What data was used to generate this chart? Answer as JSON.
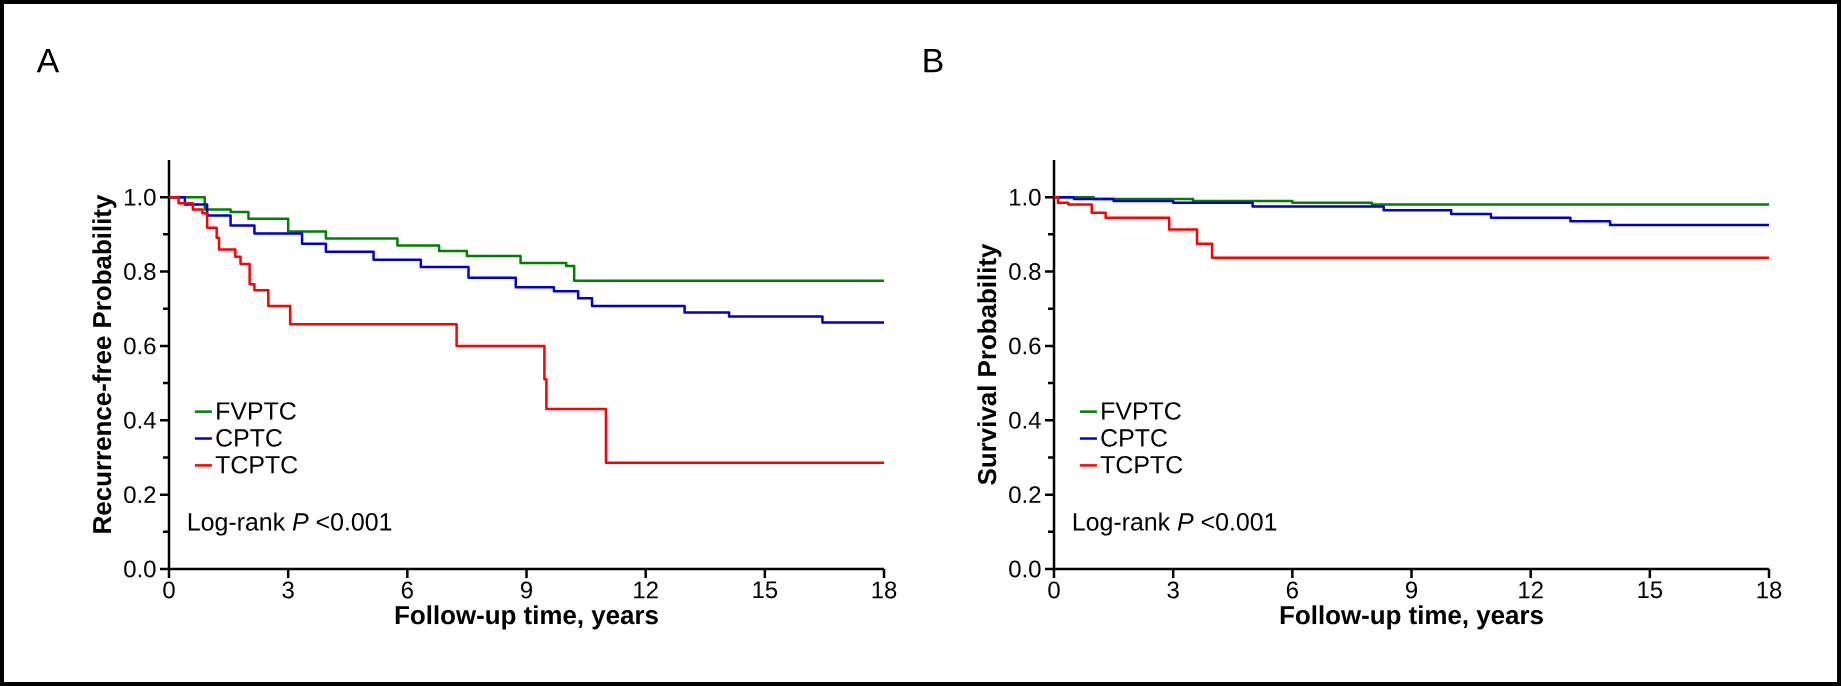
{
  "chart_data": [
    {
      "type": "step",
      "title": "A",
      "xlabel": "Follow-up time, years",
      "ylabel": "Recurrence-free Probability",
      "xlim": [
        0,
        18
      ],
      "ylim": [
        0,
        1.1
      ],
      "xticks": [
        0,
        3,
        6,
        9,
        12,
        15,
        18
      ],
      "yticks": [
        {
          "value": 0,
          "label": "0.0"
        },
        {
          "value": 0.2,
          "label": "0.2"
        },
        {
          "value": 0.4,
          "label": "0.4"
        },
        {
          "value": 0.6,
          "label": "0.6"
        },
        {
          "value": 0.8,
          "label": "0.8"
        },
        {
          "value": 1,
          "label": "1.0"
        }
      ],
      "legend": "bottom left",
      "marker": "none",
      "annotations": [
        "Log-rank *P* <0.001"
      ],
      "series": [
        {
          "name": "FVPTC",
          "color": "#008000",
          "x": [
            0,
            0.9,
            1.55,
            2.0,
            3.0,
            3.95,
            5.75,
            6.8,
            7.5,
            8.85,
            10.0,
            10.2,
            18
          ],
          "values": [
            1.0,
            0.967,
            0.96,
            0.942,
            0.908,
            0.889,
            0.87,
            0.855,
            0.842,
            0.823,
            0.815,
            0.775,
            0.775
          ]
        },
        {
          "name": "CPTC",
          "color": "#0000cc",
          "x": [
            0,
            0.4,
            0.96,
            1.55,
            2.15,
            3.35,
            3.95,
            5.15,
            6.34,
            7.54,
            8.73,
            9.69,
            10.3,
            10.65,
            12.98,
            14.1,
            16.45,
            18
          ],
          "values": [
            1.0,
            0.98,
            0.951,
            0.924,
            0.902,
            0.875,
            0.853,
            0.832,
            0.812,
            0.783,
            0.758,
            0.747,
            0.728,
            0.707,
            0.69,
            0.679,
            0.663,
            0.663
          ]
        },
        {
          "name": "TCPTC",
          "color": "#ff0000",
          "x": [
            0,
            0.24,
            0.6,
            0.84,
            0.96,
            1.2,
            1.26,
            1.67,
            1.8,
            2.03,
            2.15,
            2.5,
            3.05,
            7.24,
            9.45,
            9.5,
            11.0,
            18
          ],
          "values": [
            1.0,
            0.984,
            0.967,
            0.957,
            0.918,
            0.891,
            0.859,
            0.84,
            0.82,
            0.766,
            0.75,
            0.707,
            0.658,
            0.6,
            0.51,
            0.43,
            0.286,
            0.286
          ]
        }
      ]
    },
    {
      "type": "step",
      "title": "B",
      "xlabel": "Follow-up time, years",
      "ylabel": "Survival Probability",
      "xlim": [
        0,
        18
      ],
      "ylim": [
        0,
        1.1
      ],
      "xticks": [
        0,
        3,
        6,
        9,
        12,
        15,
        18
      ],
      "yticks": [
        {
          "value": 0,
          "label": "0.0"
        },
        {
          "value": 0.2,
          "label": "0.2"
        },
        {
          "value": 0.4,
          "label": "0.4"
        },
        {
          "value": 0.6,
          "label": "0.6"
        },
        {
          "value": 0.8,
          "label": "0.8"
        },
        {
          "value": 1,
          "label": "1.0"
        }
      ],
      "legend": "bottom left",
      "marker": "none",
      "annotations": [
        "Log-rank *P* <0.001"
      ],
      "series": [
        {
          "name": "FVPTC",
          "color": "#008000",
          "x": [
            0,
            1,
            3.5,
            6,
            8,
            18
          ],
          "values": [
            1.0,
            0.995,
            0.99,
            0.985,
            0.98,
            0.98
          ]
        },
        {
          "name": "CPTC",
          "color": "#0000cc",
          "x": [
            0,
            0.5,
            1.5,
            3,
            5,
            8.3,
            10,
            11,
            13,
            14,
            18
          ],
          "values": [
            1.0,
            0.995,
            0.99,
            0.985,
            0.975,
            0.965,
            0.955,
            0.945,
            0.935,
            0.925,
            0.925
          ]
        },
        {
          "name": "TCPTC",
          "color": "#ff0000",
          "x": [
            0,
            0.1,
            0.36,
            0.95,
            1.3,
            2.9,
            3.6,
            3.98,
            18
          ],
          "values": [
            1.0,
            0.985,
            0.98,
            0.958,
            0.945,
            0.913,
            0.875,
            0.837,
            0.837
          ]
        }
      ]
    }
  ]
}
